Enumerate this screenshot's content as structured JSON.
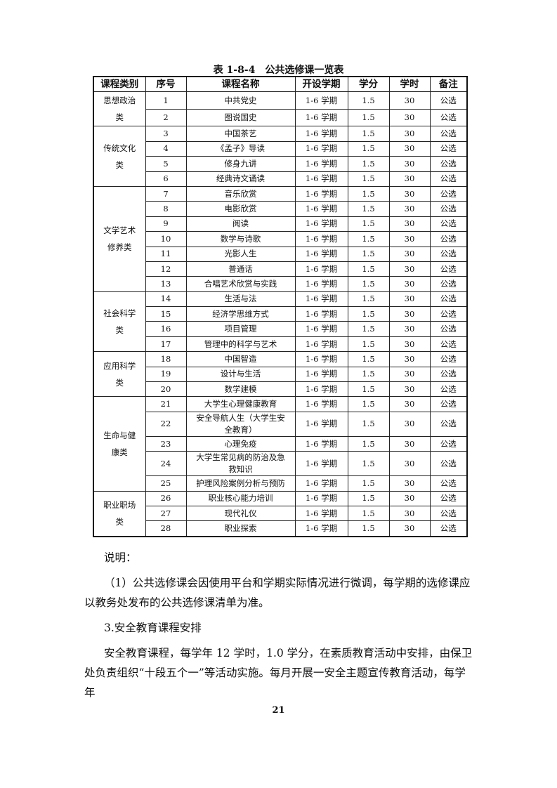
{
  "caption": "表 1-8-4　公共选修课一览表",
  "headers": [
    "课程类别",
    "序号",
    "课程名称",
    "开设学期",
    "学分",
    "学时",
    "备注"
  ],
  "groups": [
    {
      "category": "思想政治类",
      "rows": [
        [
          "1",
          "中共党史"
        ],
        [
          "2",
          "图说国史"
        ]
      ]
    },
    {
      "category": "传统文化类",
      "rows": [
        [
          "3",
          "中国茶艺"
        ],
        [
          "4",
          "《孟子》导读"
        ],
        [
          "5",
          "修身九讲"
        ],
        [
          "6",
          "经典诗文诵读"
        ]
      ]
    },
    {
      "category": "文学艺术修养类",
      "rows": [
        [
          "7",
          "音乐欣赏"
        ],
        [
          "8",
          "电影欣赏"
        ],
        [
          "9",
          "阅读"
        ],
        [
          "10",
          "数学与诗歌"
        ],
        [
          "11",
          "光影人生"
        ],
        [
          "12",
          "普通话"
        ],
        [
          "13",
          "合唱艺术欣赏与实践"
        ]
      ]
    },
    {
      "category": "社会科学类",
      "rows": [
        [
          "14",
          "生活与法"
        ],
        [
          "15",
          "经济学思维方式"
        ],
        [
          "16",
          "项目管理"
        ],
        [
          "17",
          "管理中的科学与艺术"
        ]
      ]
    },
    {
      "category": "应用科学类",
      "rows": [
        [
          "18",
          "中国智造"
        ],
        [
          "19",
          "设计与生活"
        ],
        [
          "20",
          "数学建模"
        ]
      ]
    },
    {
      "category": "生命与健康类",
      "rows": [
        [
          "21",
          "大学生心理健康教育"
        ],
        [
          "22",
          "安全导航人生（大学生安全教育）"
        ],
        [
          "23",
          "心理免疫"
        ],
        [
          "24",
          "大学生常见病的防治及急救知识"
        ],
        [
          "25",
          "护理风险案例分析与预防"
        ]
      ]
    },
    {
      "category": "职业职场类",
      "rows": [
        [
          "26",
          "职业核心能力培训"
        ],
        [
          "27",
          "现代礼仪"
        ],
        [
          "28",
          "职业探索"
        ]
      ]
    }
  ],
  "common": {
    "semester": "1-6 学期",
    "credit": "1.5",
    "hours": "30",
    "note": "公选"
  },
  "notes_label": "说明：",
  "note1": "（1）公共选修课会因使用平台和学期实际情况进行微调，每学期的选修课应以教务处发布的公共选修课清单为准。",
  "section3": "3.安全教育课程安排",
  "para": "安全教育课程，每学年 12 学时，1.0 学分，在素质教育活动中安排，由保卫处负责组织“十段五个一”等活动实施。每月开展一安全主题宣传教育活动，每学年",
  "page_number": "21"
}
